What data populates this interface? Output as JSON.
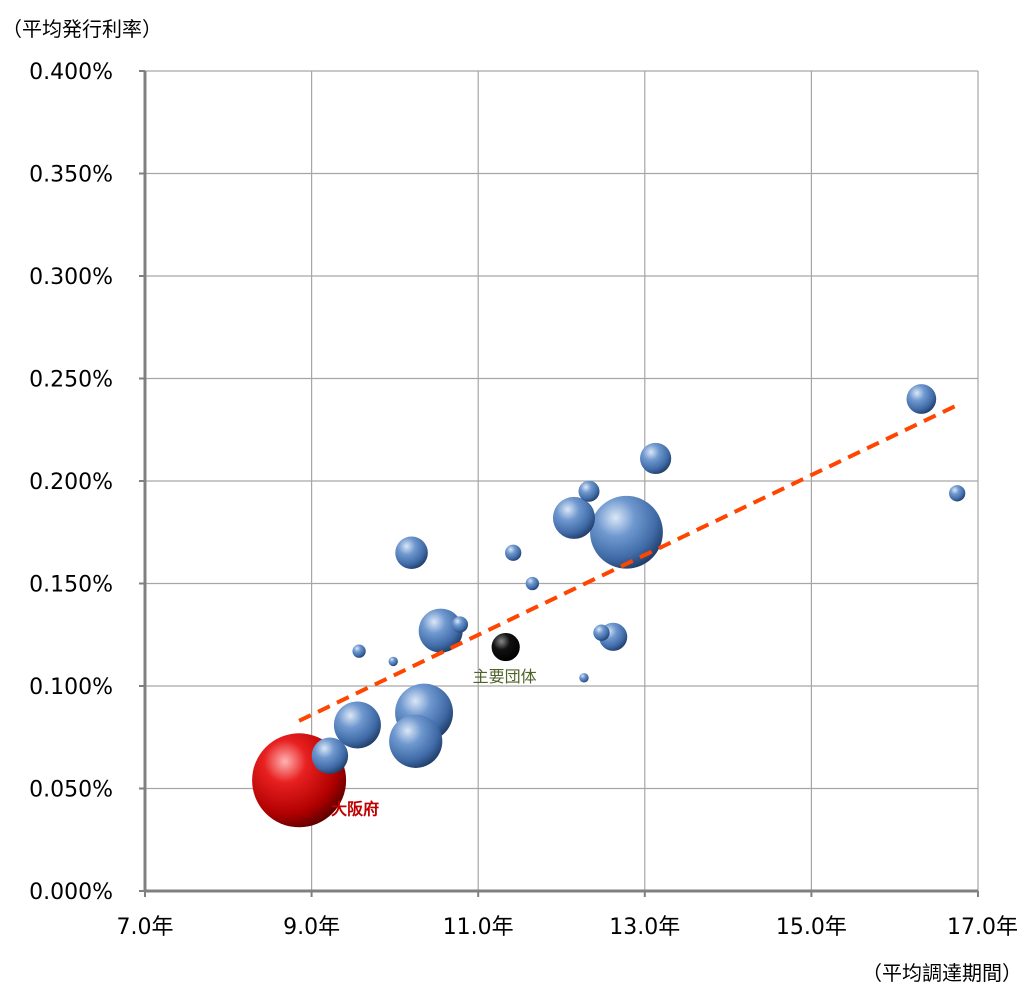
{
  "chart_data": {
    "type": "scatter",
    "subtype": "bubble",
    "y_axis_title": "（平均発行利率）",
    "x_axis_title": "（平均調達期間）",
    "x_ticks": [
      "7.0年",
      "9.0年",
      "11.0年",
      "13.0年",
      "15.0年",
      "17.0年"
    ],
    "y_ticks": [
      "0.000%",
      "0.050%",
      "0.100%",
      "0.150%",
      "0.200%",
      "0.250%",
      "0.300%",
      "0.350%",
      "0.400%"
    ],
    "xlim": [
      7.0,
      17.0
    ],
    "ylim": [
      0.0,
      0.4
    ],
    "grid": true,
    "trendline": {
      "type": "linear",
      "color": "#ff4500",
      "from": [
        8.85,
        0.083
      ],
      "to": [
        16.75,
        0.237
      ]
    },
    "colors": {
      "osaka": "#cc0000",
      "main_groups": "#000000",
      "others": "#4f81bd",
      "trend": "#ff4500"
    },
    "points": [
      {
        "x": 8.85,
        "y": 0.054,
        "size": 100,
        "group": "osaka",
        "label": "大阪府"
      },
      {
        "x": 11.33,
        "y": 0.119,
        "size": 9,
        "group": "main",
        "label": "主要団体"
      },
      {
        "x": 9.22,
        "y": 0.066,
        "size": 15,
        "group": "other"
      },
      {
        "x": 9.55,
        "y": 0.081,
        "size": 25,
        "group": "other"
      },
      {
        "x": 9.57,
        "y": 0.117,
        "size": 2,
        "group": "other"
      },
      {
        "x": 9.98,
        "y": 0.112,
        "size": 1,
        "group": "other"
      },
      {
        "x": 10.2,
        "y": 0.165,
        "size": 12,
        "group": "other"
      },
      {
        "x": 10.25,
        "y": 0.073,
        "size": 32,
        "group": "other"
      },
      {
        "x": 10.35,
        "y": 0.087,
        "size": 38,
        "group": "other"
      },
      {
        "x": 10.55,
        "y": 0.127,
        "size": 22,
        "group": "other"
      },
      {
        "x": 10.78,
        "y": 0.13,
        "size": 3,
        "group": "other"
      },
      {
        "x": 11.42,
        "y": 0.165,
        "size": 3,
        "group": "other"
      },
      {
        "x": 11.65,
        "y": 0.15,
        "size": 2,
        "group": "other"
      },
      {
        "x": 12.15,
        "y": 0.182,
        "size": 20,
        "group": "other"
      },
      {
        "x": 12.27,
        "y": 0.104,
        "size": 1,
        "group": "other"
      },
      {
        "x": 12.33,
        "y": 0.195,
        "size": 5,
        "group": "other"
      },
      {
        "x": 12.48,
        "y": 0.126,
        "size": 3,
        "group": "other"
      },
      {
        "x": 12.62,
        "y": 0.124,
        "size": 9,
        "group": "other"
      },
      {
        "x": 12.78,
        "y": 0.175,
        "size": 60,
        "group": "other"
      },
      {
        "x": 13.13,
        "y": 0.211,
        "size": 11,
        "group": "other"
      },
      {
        "x": 16.32,
        "y": 0.24,
        "size": 10,
        "group": "other"
      },
      {
        "x": 16.75,
        "y": 0.194,
        "size": 3,
        "group": "other"
      }
    ]
  }
}
